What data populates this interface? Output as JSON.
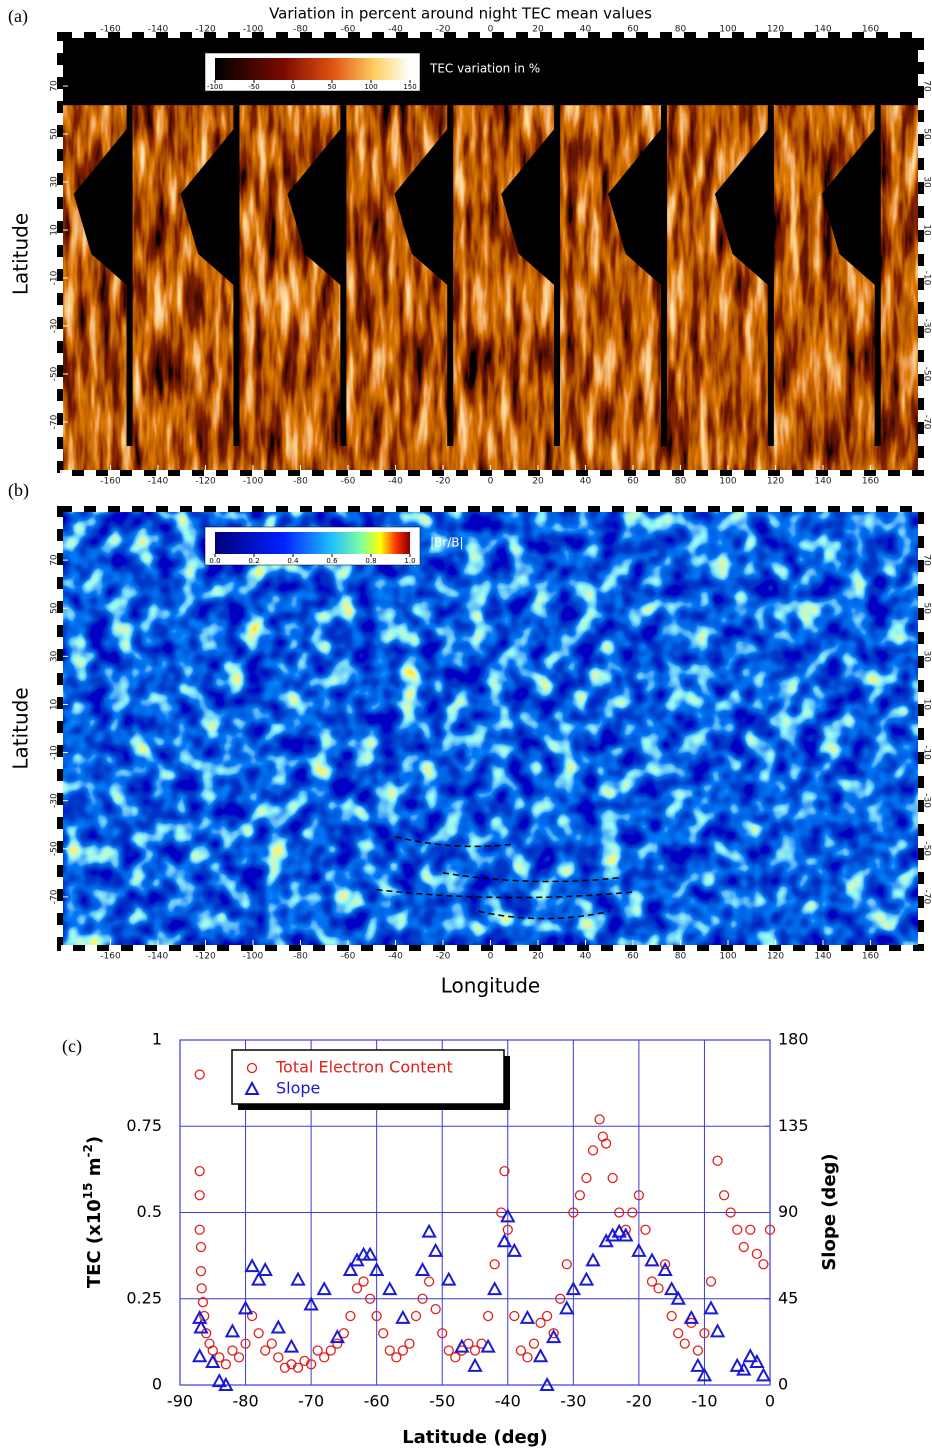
{
  "chart_data": [
    {
      "type": "heatmap",
      "panel_label": "(a)",
      "title": "Variation in percent around night TEC mean values",
      "ylabel": "Latitude",
      "palette": "hot",
      "xlim": [
        -180,
        180
      ],
      "ylim": [
        -90,
        90
      ],
      "xticks": [
        -160,
        -140,
        -120,
        -100,
        -80,
        -60,
        -40,
        -20,
        0,
        20,
        40,
        60,
        80,
        100,
        120,
        140,
        160
      ],
      "yticks": [
        70,
        50,
        30,
        10,
        -10,
        -30,
        -50,
        -70
      ],
      "colorbar": {
        "label": "TEC variation in %",
        "lim": [
          -100,
          150
        ],
        "ticks": [
          -100,
          -50,
          0,
          50,
          100,
          150
        ]
      }
    },
    {
      "type": "heatmap",
      "panel_label": "(b)",
      "ylabel": "Latitude",
      "xlabel": "Longitude",
      "palette": "jet",
      "xlim": [
        -180,
        180
      ],
      "ylim": [
        -90,
        90
      ],
      "xticks": [
        -160,
        -140,
        -120,
        -100,
        -80,
        -60,
        -40,
        -20,
        0,
        20,
        40,
        60,
        80,
        100,
        120,
        140,
        160
      ],
      "yticks": [
        70,
        50,
        30,
        10,
        -10,
        -30,
        -50,
        -70
      ],
      "colorbar": {
        "label": "|Br/B|",
        "lim": [
          0,
          1
        ],
        "ticks": [
          {
            "value": 0,
            "label": "0.0"
          },
          0.2,
          0.4,
          0.6,
          0.8,
          {
            "value": 1,
            "label": "1.0"
          }
        ]
      }
    },
    {
      "type": "scatter",
      "panel_label": "(c)",
      "xlabel": "Latitude (deg)",
      "ylabel": [
        "TEC (x10",
        "15",
        " m",
        "-2",
        ")"
      ],
      "y2label": "Slope (deg)",
      "xlim": [
        -90,
        0
      ],
      "xticks": [
        -90,
        -80,
        -70,
        -60,
        -50,
        -40,
        -30,
        -20,
        -10,
        0
      ],
      "ylim": [
        0,
        1
      ],
      "yticks": [
        0,
        0.25,
        0.5,
        0.75,
        1
      ],
      "y2lim": [
        0,
        180
      ],
      "y2ticks": [
        0,
        45,
        90,
        135,
        180
      ],
      "grid": true,
      "grid_color": "#3a3ad8",
      "series": [
        {
          "name": "Total Electron Content",
          "color": "#e0201c",
          "marker": "circle",
          "x": [
            -87,
            -87,
            -87,
            -87,
            -86.8,
            -86.8,
            -86.7,
            -86.5,
            -86.3,
            -86,
            -85.5,
            -85,
            -84,
            -83,
            -82,
            -81,
            -80,
            -79,
            -78,
            -77,
            -76,
            -75,
            -74,
            -73,
            -72,
            -71,
            -70,
            -69,
            -68,
            -67,
            -66,
            -65,
            -64,
            -63,
            -62,
            -61,
            -60,
            -59,
            -58,
            -57,
            -56,
            -55,
            -54,
            -53,
            -52,
            -51,
            -50,
            -49,
            -48,
            -47,
            -46,
            -45,
            -44,
            -43,
            -42,
            -41,
            -40.5,
            -40,
            -39,
            -38,
            -37,
            -36,
            -35,
            -34,
            -33,
            -32,
            -31,
            -30,
            -29,
            -28,
            -27,
            -26,
            -25.5,
            -25,
            -24,
            -23,
            -22,
            -21,
            -20,
            -19,
            -18,
            -17,
            -16,
            -15,
            -14,
            -13,
            -12,
            -11,
            -10,
            -9,
            -8,
            -7,
            -6,
            -5,
            -4,
            -3,
            -2,
            -1,
            0
          ],
          "values": [
            0.9,
            0.62,
            0.55,
            0.45,
            0.4,
            0.33,
            0.28,
            0.24,
            0.2,
            0.15,
            0.12,
            0.1,
            0.08,
            0.06,
            0.1,
            0.08,
            0.12,
            0.2,
            0.15,
            0.1,
            0.12,
            0.08,
            0.05,
            0.06,
            0.05,
            0.07,
            0.06,
            0.1,
            0.08,
            0.1,
            0.12,
            0.15,
            0.2,
            0.28,
            0.3,
            0.25,
            0.2,
            0.15,
            0.1,
            0.08,
            0.1,
            0.12,
            0.2,
            0.25,
            0.3,
            0.22,
            0.15,
            0.1,
            0.08,
            0.1,
            0.12,
            0.1,
            0.12,
            0.2,
            0.35,
            0.5,
            0.62,
            0.45,
            0.2,
            0.1,
            0.08,
            0.12,
            0.18,
            0.2,
            0.15,
            0.25,
            0.35,
            0.5,
            0.55,
            0.6,
            0.68,
            0.77,
            0.72,
            0.7,
            0.6,
            0.5,
            0.45,
            0.5,
            0.55,
            0.45,
            0.3,
            0.28,
            0.35,
            0.2,
            0.15,
            0.12,
            0.18,
            0.1,
            0.15,
            0.3,
            0.65,
            0.55,
            0.5,
            0.45,
            0.4,
            0.45,
            0.38,
            0.35,
            0.45
          ]
        },
        {
          "name": "Slope",
          "color": "#1a1ad0",
          "marker": "triangle",
          "axis": "y2",
          "x": [
            -87,
            -87,
            -86.8,
            -85,
            -84,
            -83,
            -82,
            -80,
            -79,
            -78,
            -77,
            -75,
            -73,
            -72,
            -70,
            -68,
            -66,
            -64,
            -63,
            -62,
            -61,
            -60,
            -58,
            -56,
            -53,
            -52,
            -51,
            -49,
            -47,
            -45,
            -43,
            -42,
            -40.5,
            -40,
            -39,
            -37,
            -35,
            -34,
            -33,
            -31,
            -30,
            -28,
            -27,
            -25,
            -24,
            -23,
            -22,
            -20,
            -18,
            -16,
            -15,
            -14,
            -12,
            -11,
            -10,
            -9,
            -8,
            -5,
            -4,
            -3,
            -2,
            -1
          ],
          "values": [
            15,
            35,
            30,
            12,
            2,
            0,
            28,
            40,
            62,
            55,
            60,
            30,
            20,
            55,
            42,
            50,
            25,
            60,
            65,
            68,
            68,
            60,
            50,
            35,
            60,
            80,
            70,
            55,
            20,
            10,
            20,
            50,
            75,
            88,
            70,
            35,
            15,
            0,
            25,
            40,
            50,
            55,
            65,
            75,
            78,
            80,
            78,
            70,
            65,
            60,
            50,
            45,
            35,
            10,
            5,
            40,
            28,
            10,
            8,
            15,
            12,
            5
          ]
        }
      ]
    }
  ]
}
